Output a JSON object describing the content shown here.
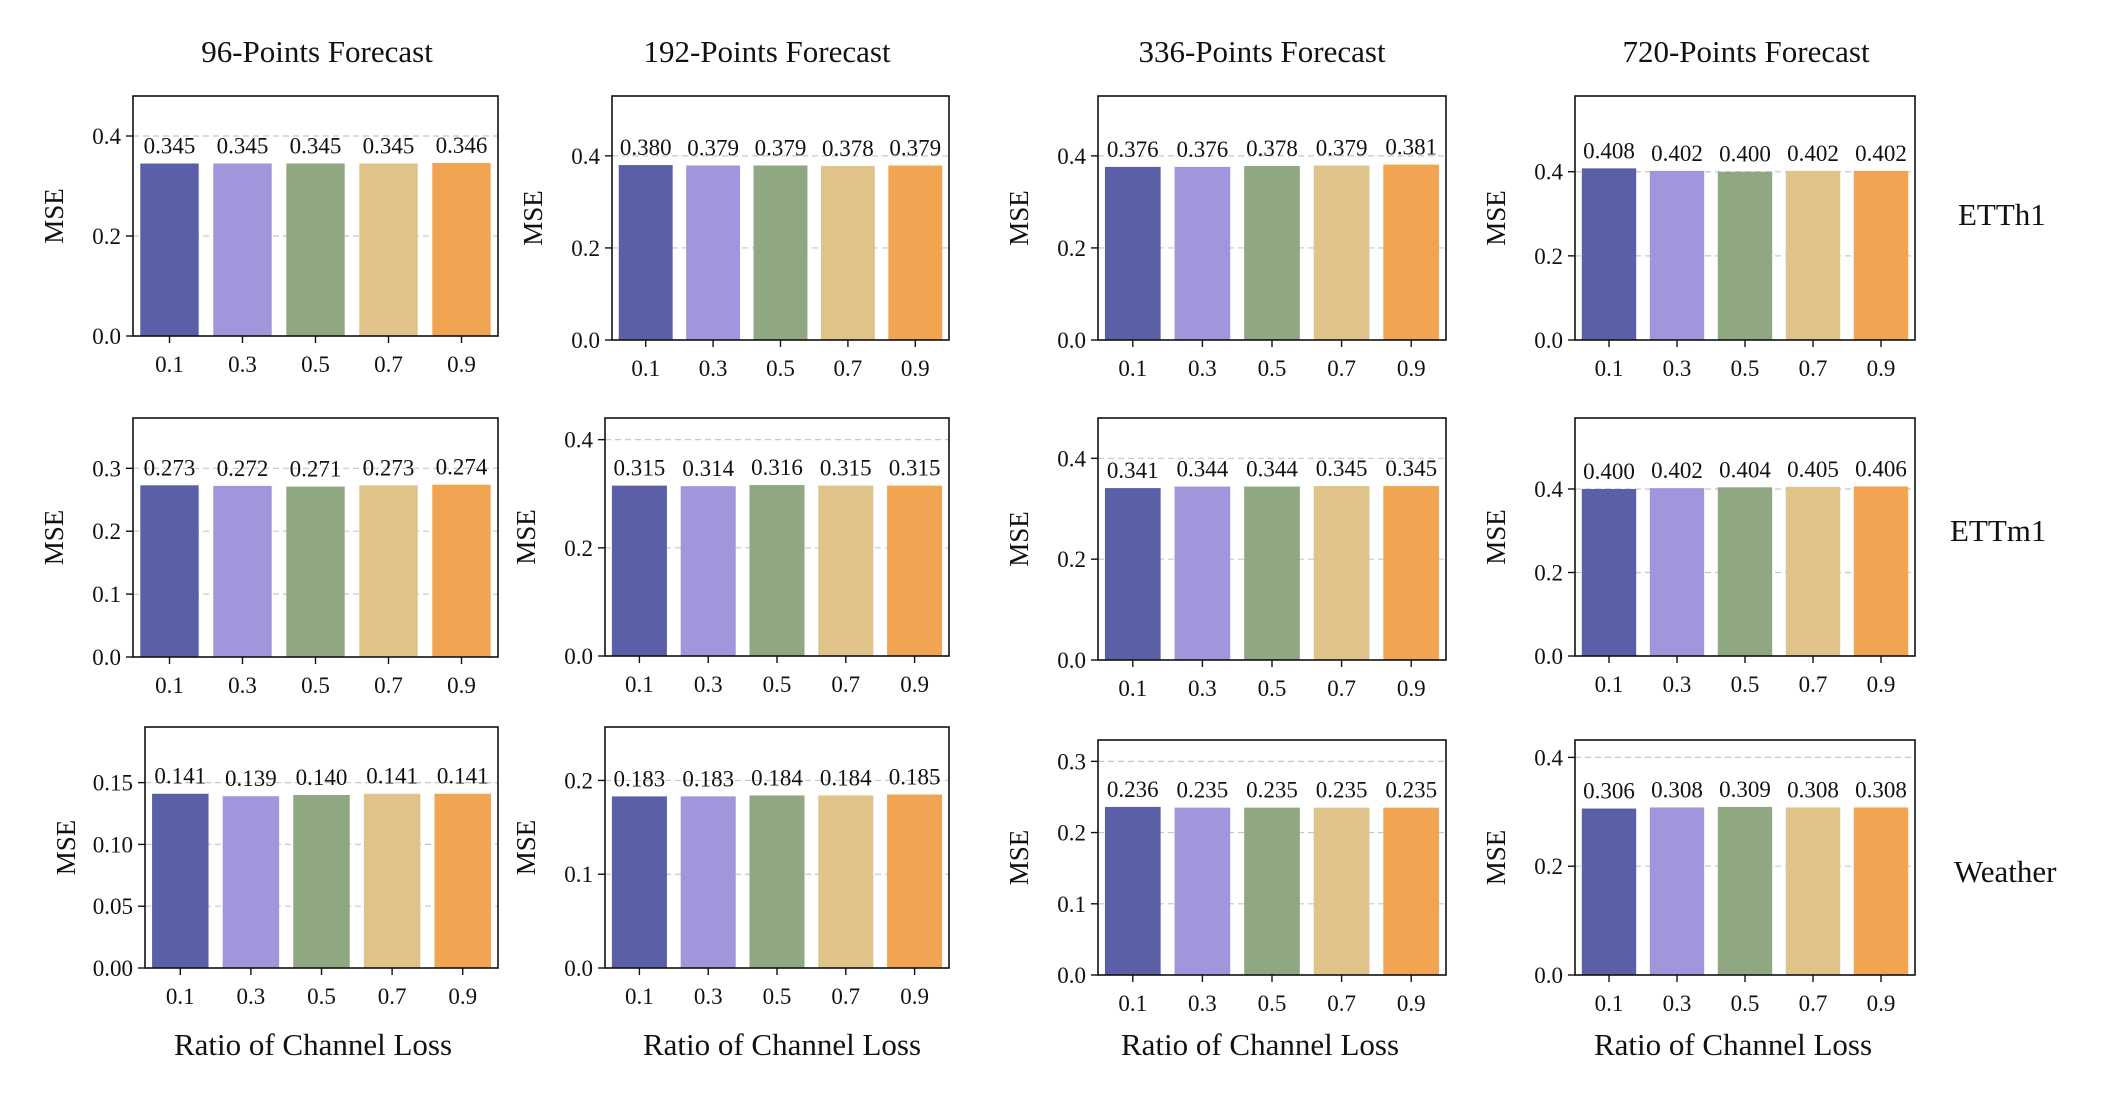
{
  "figure": {
    "column_titles": [
      "96-Points Forecast",
      "192-Points Forecast",
      "336-Points Forecast",
      "720-Points Forecast"
    ],
    "row_titles": [
      "ETTh1",
      "ETTm1",
      "Weather"
    ],
    "xlabel": "Ratio of Channel Loss"
  },
  "colors": [
    "#5b5fa8",
    "#a195dc",
    "#8fa882",
    "#dfc389",
    "#f1a451"
  ],
  "chart_data": [
    {
      "type": "bar",
      "row": "ETTh1",
      "column": "96-Points Forecast",
      "categories": [
        "0.1",
        "0.3",
        "0.5",
        "0.7",
        "0.9"
      ],
      "values": [
        0.345,
        0.345,
        0.345,
        0.345,
        0.346
      ],
      "data_labels": [
        "0.345",
        "0.345",
        "0.345",
        "0.345",
        "0.346"
      ],
      "xlabel": "",
      "ylabel": "MSE",
      "ylim": [
        0,
        0.48
      ],
      "yticks": [
        0,
        0.2,
        0.4
      ],
      "ytick_labels": [
        "0.0",
        "0.2",
        "0.4"
      ],
      "grid": "y-dashed"
    },
    {
      "type": "bar",
      "row": "ETTh1",
      "column": "192-Points Forecast",
      "categories": [
        "0.1",
        "0.3",
        "0.5",
        "0.7",
        "0.9"
      ],
      "values": [
        0.38,
        0.379,
        0.379,
        0.378,
        0.379
      ],
      "data_labels": [
        "0.380",
        "0.379",
        "0.379",
        "0.378",
        "0.379"
      ],
      "xlabel": "",
      "ylabel": "MSE",
      "ylim": [
        0,
        0.53
      ],
      "yticks": [
        0,
        0.2,
        0.4
      ],
      "ytick_labels": [
        "0.0",
        "0.2",
        "0.4"
      ],
      "grid": "y-dashed"
    },
    {
      "type": "bar",
      "row": "ETTh1",
      "column": "336-Points Forecast",
      "categories": [
        "0.1",
        "0.3",
        "0.5",
        "0.7",
        "0.9"
      ],
      "values": [
        0.376,
        0.376,
        0.378,
        0.379,
        0.381
      ],
      "data_labels": [
        "0.376",
        "0.376",
        "0.378",
        "0.379",
        "0.381"
      ],
      "xlabel": "",
      "ylabel": "MSE",
      "ylim": [
        0,
        0.53
      ],
      "yticks": [
        0,
        0.2,
        0.4
      ],
      "ytick_labels": [
        "0.0",
        "0.2",
        "0.4"
      ],
      "grid": "y-dashed"
    },
    {
      "type": "bar",
      "row": "ETTh1",
      "column": "720-Points Forecast",
      "categories": [
        "0.1",
        "0.3",
        "0.5",
        "0.7",
        "0.9"
      ],
      "values": [
        0.408,
        0.402,
        0.4,
        0.402,
        0.402
      ],
      "data_labels": [
        "0.408",
        "0.402",
        "0.400",
        "0.402",
        "0.402"
      ],
      "xlabel": "",
      "ylabel": "MSE",
      "ylim": [
        0,
        0.58
      ],
      "yticks": [
        0,
        0.2,
        0.4
      ],
      "ytick_labels": [
        "0.0",
        "0.2",
        "0.4"
      ],
      "grid": "y-dashed"
    },
    {
      "type": "bar",
      "row": "ETTm1",
      "column": "96-Points Forecast",
      "categories": [
        "0.1",
        "0.3",
        "0.5",
        "0.7",
        "0.9"
      ],
      "values": [
        0.273,
        0.272,
        0.271,
        0.273,
        0.274
      ],
      "data_labels": [
        "0.273",
        "0.272",
        "0.271",
        "0.273",
        "0.274"
      ],
      "xlabel": "",
      "ylabel": "MSE",
      "ylim": [
        0,
        0.38
      ],
      "yticks": [
        0,
        0.1,
        0.2,
        0.3
      ],
      "ytick_labels": [
        "0.0",
        "0.1",
        "0.2",
        "0.3"
      ],
      "grid": "y-dashed"
    },
    {
      "type": "bar",
      "row": "ETTm1",
      "column": "192-Points Forecast",
      "categories": [
        "0.1",
        "0.3",
        "0.5",
        "0.7",
        "0.9"
      ],
      "values": [
        0.315,
        0.314,
        0.316,
        0.315,
        0.315
      ],
      "data_labels": [
        "0.315",
        "0.314",
        "0.316",
        "0.315",
        "0.315"
      ],
      "xlabel": "",
      "ylabel": "MSE",
      "ylim": [
        0,
        0.44
      ],
      "yticks": [
        0,
        0.2,
        0.4
      ],
      "ytick_labels": [
        "0.0",
        "0.2",
        "0.4"
      ],
      "grid": "y-dashed"
    },
    {
      "type": "bar",
      "row": "ETTm1",
      "column": "336-Points Forecast",
      "categories": [
        "0.1",
        "0.3",
        "0.5",
        "0.7",
        "0.9"
      ],
      "values": [
        0.341,
        0.344,
        0.344,
        0.345,
        0.345
      ],
      "data_labels": [
        "0.341",
        "0.344",
        "0.344",
        "0.345",
        "0.345"
      ],
      "xlabel": "",
      "ylabel": "MSE",
      "ylim": [
        0,
        0.48
      ],
      "yticks": [
        0,
        0.2,
        0.4
      ],
      "ytick_labels": [
        "0.0",
        "0.2",
        "0.4"
      ],
      "grid": "y-dashed"
    },
    {
      "type": "bar",
      "row": "ETTm1",
      "column": "720-Points Forecast",
      "categories": [
        "0.1",
        "0.3",
        "0.5",
        "0.7",
        "0.9"
      ],
      "values": [
        0.4,
        0.402,
        0.404,
        0.405,
        0.406
      ],
      "data_labels": [
        "0.400",
        "0.402",
        "0.404",
        "0.405",
        "0.406"
      ],
      "xlabel": "",
      "ylabel": "MSE",
      "ylim": [
        0,
        0.57
      ],
      "yticks": [
        0,
        0.2,
        0.4
      ],
      "ytick_labels": [
        "0.0",
        "0.2",
        "0.4"
      ],
      "grid": "y-dashed"
    },
    {
      "type": "bar",
      "row": "Weather",
      "column": "96-Points Forecast",
      "categories": [
        "0.1",
        "0.3",
        "0.5",
        "0.7",
        "0.9"
      ],
      "values": [
        0.141,
        0.139,
        0.14,
        0.141,
        0.141
      ],
      "data_labels": [
        "0.141",
        "0.139",
        "0.140",
        "0.141",
        "0.141"
      ],
      "xlabel": "Ratio of Channel Loss",
      "ylabel": "MSE",
      "ylim": [
        0,
        0.195
      ],
      "yticks": [
        0,
        0.05,
        0.1,
        0.15
      ],
      "ytick_labels": [
        "0.00",
        "0.05",
        "0.10",
        "0.15"
      ],
      "grid": "y-dashed"
    },
    {
      "type": "bar",
      "row": "Weather",
      "column": "192-Points Forecast",
      "categories": [
        "0.1",
        "0.3",
        "0.5",
        "0.7",
        "0.9"
      ],
      "values": [
        0.183,
        0.183,
        0.184,
        0.184,
        0.185
      ],
      "data_labels": [
        "0.183",
        "0.183",
        "0.184",
        "0.184",
        "0.185"
      ],
      "xlabel": "Ratio of Channel Loss",
      "ylabel": "MSE",
      "ylim": [
        0,
        0.257
      ],
      "yticks": [
        0,
        0.1,
        0.2
      ],
      "ytick_labels": [
        "0.0",
        "0.1",
        "0.2"
      ],
      "grid": "y-dashed"
    },
    {
      "type": "bar",
      "row": "Weather",
      "column": "336-Points Forecast",
      "categories": [
        "0.1",
        "0.3",
        "0.5",
        "0.7",
        "0.9"
      ],
      "values": [
        0.236,
        0.235,
        0.235,
        0.235,
        0.235
      ],
      "data_labels": [
        "0.236",
        "0.235",
        "0.235",
        "0.235",
        "0.235"
      ],
      "xlabel": "Ratio of Channel Loss",
      "ylabel": "MSE",
      "ylim": [
        0,
        0.33
      ],
      "yticks": [
        0,
        0.1,
        0.2,
        0.3
      ],
      "ytick_labels": [
        "0.0",
        "0.1",
        "0.2",
        "0.3"
      ],
      "grid": "y-dashed"
    },
    {
      "type": "bar",
      "row": "Weather",
      "column": "720-Points Forecast",
      "categories": [
        "0.1",
        "0.3",
        "0.5",
        "0.7",
        "0.9"
      ],
      "values": [
        0.306,
        0.308,
        0.309,
        0.308,
        0.308
      ],
      "data_labels": [
        "0.306",
        "0.308",
        "0.309",
        "0.308",
        "0.308"
      ],
      "xlabel": "Ratio of Channel Loss",
      "ylabel": "MSE",
      "ylim": [
        0,
        0.432
      ],
      "yticks": [
        0,
        0.2,
        0.4
      ],
      "ytick_labels": [
        "0.0",
        "0.2",
        "0.4"
      ],
      "grid": "y-dashed"
    }
  ]
}
